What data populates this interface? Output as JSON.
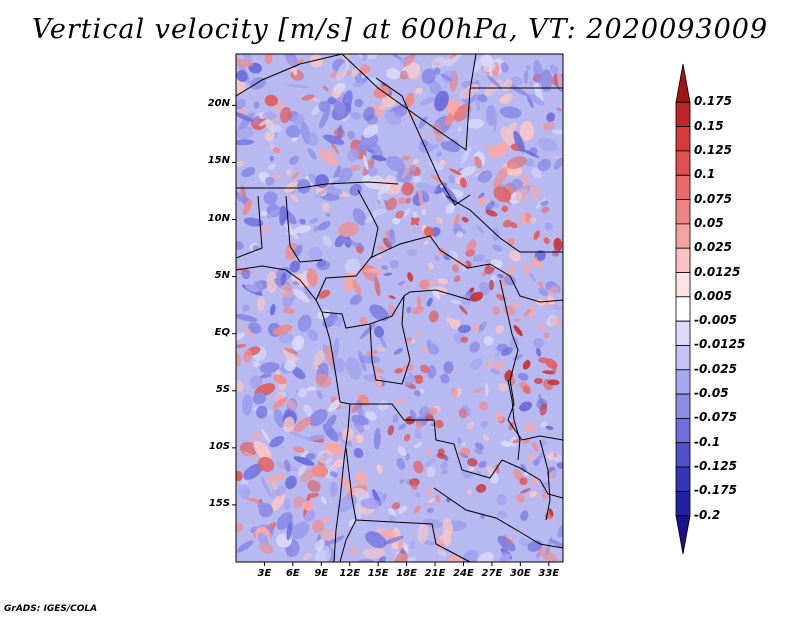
{
  "title": "Vertical velocity [m/s] at 600hPa, VT: 2020093009",
  "map": {
    "lat_labels": [
      "20N",
      "15N",
      "10N",
      "5N",
      "EQ",
      "5S",
      "10S",
      "15S"
    ],
    "lat_values": [
      20,
      15,
      10,
      5,
      0,
      -5,
      -10,
      -15
    ],
    "lon_labels": [
      "3E",
      "6E",
      "9E",
      "12E",
      "15E",
      "18E",
      "21E",
      "24E",
      "27E",
      "30E",
      "33E"
    ],
    "lon_values": [
      3,
      6,
      9,
      12,
      15,
      18,
      21,
      24,
      27,
      30,
      33
    ],
    "lat_range": [
      -20,
      24.5
    ],
    "lon_range": [
      0,
      34.5
    ]
  },
  "colorbar": {
    "labels": [
      "0.175",
      "0.15",
      "0.125",
      "0.1",
      "0.075",
      "0.05",
      "0.025",
      "0.0125",
      "0.005",
      "-0.005",
      "-0.0125",
      "-0.025",
      "-0.05",
      "-0.075",
      "-0.1",
      "-0.125",
      "-0.175",
      "-0.2"
    ],
    "colors": [
      "#a01414",
      "#c02525",
      "#d63a3a",
      "#e05050",
      "#e86a6a",
      "#ee8585",
      "#f4a3a3",
      "#f8c2c2",
      "#fce2e2",
      "#ffffff",
      "#dcdcfa",
      "#c3c3f5",
      "#a8a8ee",
      "#8c8ce6",
      "#6e6edc",
      "#5050cc",
      "#3434b8",
      "#2222a0",
      "#1a1090"
    ]
  },
  "credit": "GrADS: IGES/COLA"
}
